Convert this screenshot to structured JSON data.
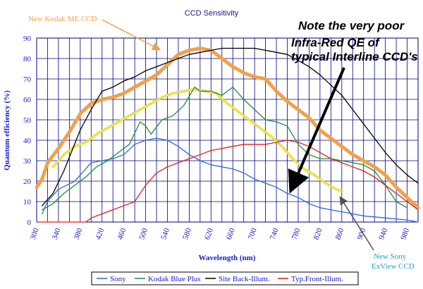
{
  "chart_data": {
    "type": "line",
    "title": "CCD Sensitivity",
    "xlabel": "Wavelength (nm)",
    "ylabel": "Quantum efficiency (%)",
    "xlim": [
      300,
      1000
    ],
    "ylim": [
      0,
      90
    ],
    "x_ticks": [
      300,
      340,
      380,
      420,
      460,
      500,
      540,
      580,
      620,
      660,
      700,
      740,
      780,
      820,
      860,
      900,
      940,
      980
    ],
    "y_ticks": [
      0,
      10,
      20,
      30,
      40,
      50,
      60,
      70,
      80,
      90
    ],
    "grid": true,
    "legend_position": "bottom",
    "series": [
      {
        "name": "Sony",
        "color": "#2a6ae6",
        "in_legend": true,
        "points": [
          [
            310,
            4
          ],
          [
            320,
            10
          ],
          [
            340,
            16
          ],
          [
            370,
            20
          ],
          [
            400,
            29
          ],
          [
            420,
            30
          ],
          [
            440,
            31
          ],
          [
            460,
            33
          ],
          [
            480,
            38
          ],
          [
            500,
            40
          ],
          [
            520,
            41
          ],
          [
            540,
            40
          ],
          [
            560,
            37
          ],
          [
            580,
            33
          ],
          [
            600,
            30
          ],
          [
            620,
            28
          ],
          [
            640,
            27
          ],
          [
            660,
            26
          ],
          [
            680,
            24
          ],
          [
            700,
            21
          ],
          [
            720,
            19
          ],
          [
            740,
            17
          ],
          [
            760,
            14
          ],
          [
            780,
            12
          ],
          [
            800,
            9
          ],
          [
            820,
            7
          ],
          [
            840,
            6
          ],
          [
            860,
            5
          ],
          [
            880,
            4
          ],
          [
            900,
            3
          ],
          [
            940,
            2
          ],
          [
            980,
            1
          ],
          [
            1000,
            0
          ]
        ]
      },
      {
        "name": "Kodak Blue Plus",
        "color": "#1e8c3c",
        "in_legend": true,
        "points": [
          [
            310,
            6
          ],
          [
            330,
            9
          ],
          [
            350,
            14
          ],
          [
            370,
            18
          ],
          [
            390,
            22
          ],
          [
            410,
            27
          ],
          [
            430,
            30
          ],
          [
            450,
            34
          ],
          [
            470,
            38
          ],
          [
            490,
            49
          ],
          [
            500,
            47
          ],
          [
            510,
            43
          ],
          [
            530,
            50
          ],
          [
            550,
            52
          ],
          [
            570,
            57
          ],
          [
            590,
            66
          ],
          [
            600,
            64
          ],
          [
            620,
            64
          ],
          [
            640,
            62
          ],
          [
            660,
            66
          ],
          [
            680,
            60
          ],
          [
            700,
            55
          ],
          [
            720,
            50
          ],
          [
            740,
            49
          ],
          [
            760,
            47
          ],
          [
            780,
            38
          ],
          [
            800,
            33
          ],
          [
            820,
            31
          ],
          [
            840,
            31
          ],
          [
            860,
            30
          ],
          [
            880,
            29
          ],
          [
            900,
            28
          ],
          [
            920,
            25
          ],
          [
            940,
            18
          ],
          [
            960,
            10
          ],
          [
            980,
            7
          ]
        ]
      },
      {
        "name": "Site Back-Illum.",
        "color": "#000000",
        "in_legend": true,
        "points": [
          [
            310,
            8
          ],
          [
            330,
            14
          ],
          [
            350,
            25
          ],
          [
            380,
            45
          ],
          [
            400,
            55
          ],
          [
            420,
            64
          ],
          [
            440,
            66
          ],
          [
            460,
            69
          ],
          [
            480,
            71
          ],
          [
            500,
            74
          ],
          [
            520,
            76
          ],
          [
            540,
            78
          ],
          [
            560,
            80
          ],
          [
            580,
            82
          ],
          [
            600,
            83
          ],
          [
            620,
            84
          ],
          [
            640,
            85
          ],
          [
            660,
            85
          ],
          [
            680,
            85
          ],
          [
            700,
            85
          ],
          [
            720,
            84
          ],
          [
            740,
            83
          ],
          [
            760,
            82
          ],
          [
            780,
            79
          ],
          [
            800,
            76
          ],
          [
            820,
            72
          ],
          [
            840,
            67
          ],
          [
            860,
            62
          ],
          [
            880,
            55
          ],
          [
            900,
            48
          ],
          [
            920,
            41
          ],
          [
            940,
            34
          ],
          [
            960,
            28
          ],
          [
            980,
            23
          ],
          [
            1000,
            19
          ]
        ]
      },
      {
        "name": "Typ.Front-Illum.",
        "color": "#e31e1e",
        "in_legend": true,
        "points": [
          [
            300,
            0
          ],
          [
            390,
            0
          ],
          [
            400,
            2
          ],
          [
            420,
            4
          ],
          [
            440,
            6
          ],
          [
            460,
            8
          ],
          [
            480,
            10
          ],
          [
            500,
            18
          ],
          [
            520,
            24
          ],
          [
            540,
            27
          ],
          [
            560,
            29
          ],
          [
            580,
            31
          ],
          [
            600,
            33
          ],
          [
            620,
            35
          ],
          [
            640,
            36
          ],
          [
            660,
            37
          ],
          [
            680,
            38
          ],
          [
            700,
            38
          ],
          [
            720,
            38
          ],
          [
            740,
            39
          ],
          [
            760,
            40
          ],
          [
            780,
            39
          ],
          [
            800,
            37
          ],
          [
            820,
            34
          ],
          [
            840,
            31
          ],
          [
            860,
            29
          ],
          [
            880,
            27
          ],
          [
            900,
            25
          ],
          [
            920,
            22
          ],
          [
            940,
            18
          ],
          [
            960,
            14
          ],
          [
            980,
            10
          ],
          [
            1000,
            6
          ]
        ]
      },
      {
        "name": "New Kodak ME CCD",
        "color": "#f2a04a",
        "in_legend": false,
        "points": [
          [
            300,
            17
          ],
          [
            310,
            21
          ],
          [
            320,
            29
          ],
          [
            340,
            36
          ],
          [
            360,
            44
          ],
          [
            380,
            53
          ],
          [
            400,
            58
          ],
          [
            420,
            60
          ],
          [
            440,
            61
          ],
          [
            460,
            63
          ],
          [
            480,
            66
          ],
          [
            500,
            69
          ],
          [
            520,
            72
          ],
          [
            540,
            77
          ],
          [
            560,
            82
          ],
          [
            580,
            84
          ],
          [
            600,
            85
          ],
          [
            620,
            84
          ],
          [
            640,
            80
          ],
          [
            660,
            76
          ],
          [
            680,
            73
          ],
          [
            700,
            71
          ],
          [
            720,
            70
          ],
          [
            740,
            64
          ],
          [
            760,
            59
          ],
          [
            780,
            55
          ],
          [
            800,
            51
          ],
          [
            820,
            45
          ],
          [
            840,
            41
          ],
          [
            860,
            37
          ],
          [
            880,
            33
          ],
          [
            900,
            30
          ],
          [
            920,
            27
          ],
          [
            940,
            23
          ],
          [
            960,
            17
          ],
          [
            980,
            12
          ],
          [
            1000,
            7
          ]
        ]
      },
      {
        "name": "New Sony ExView CCD",
        "color": "#e8dc2c",
        "in_legend": false,
        "points": [
          [
            330,
            27
          ],
          [
            350,
            33
          ],
          [
            370,
            37
          ],
          [
            390,
            39
          ],
          [
            410,
            43
          ],
          [
            430,
            46
          ],
          [
            450,
            49
          ],
          [
            470,
            52
          ],
          [
            490,
            55
          ],
          [
            510,
            58
          ],
          [
            530,
            61
          ],
          [
            550,
            63
          ],
          [
            570,
            64
          ],
          [
            590,
            65
          ],
          [
            610,
            64
          ],
          [
            630,
            63
          ],
          [
            650,
            58
          ],
          [
            670,
            54
          ],
          [
            690,
            50
          ],
          [
            710,
            46
          ],
          [
            730,
            42
          ],
          [
            750,
            37
          ],
          [
            770,
            31
          ],
          [
            790,
            26
          ],
          [
            810,
            23
          ],
          [
            830,
            19
          ],
          [
            850,
            16
          ],
          [
            860,
            15
          ]
        ]
      }
    ]
  },
  "annotations": {
    "kodak_label": "New Kodak ME CCD",
    "note_line1": "Note the very poor",
    "note_line2": "Infra-Red QE of",
    "note_line3": "typical Interline CCD's",
    "sony_label_line1": "New Sony",
    "sony_label_line2": "ExView CCD"
  }
}
